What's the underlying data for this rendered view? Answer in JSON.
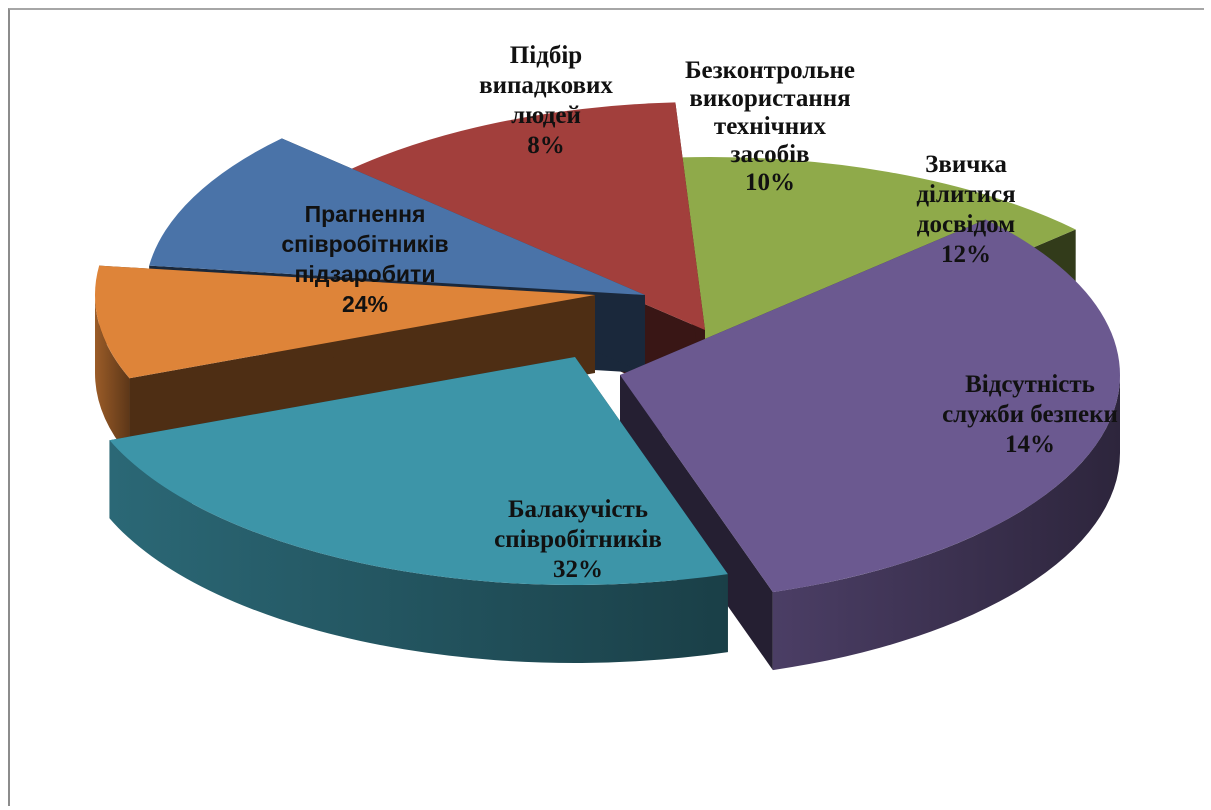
{
  "chart_data": {
    "type": "pie",
    "title": "",
    "slices": [
      {
        "label_lines": [
          "Балакучість",
          "співробітників"
        ],
        "percent_label": "32%",
        "value": 32,
        "color": "#6b5990"
      },
      {
        "label_lines": [
          "Прагнення",
          "співробітників",
          "підзаробити"
        ],
        "percent_label": "24%",
        "value": 24,
        "color": "#3d95a8"
      },
      {
        "label_lines": [
          "Підбір",
          "випадкових",
          "людей"
        ],
        "percent_label": "8%",
        "value": 8,
        "color": "#de8439"
      },
      {
        "label_lines": [
          "Безконтрольне",
          "використання",
          "технічних",
          "засобів"
        ],
        "percent_label": "10%",
        "value": 10,
        "color": "#4a73a8"
      },
      {
        "label_lines": [
          "Звичка",
          "ділитися",
          "досвідом"
        ],
        "percent_label": "12%",
        "value": 12,
        "color": "#a23f3c"
      },
      {
        "label_lines": [
          "Відсутність",
          "служби безпеки"
        ],
        "percent_label": "14%",
        "value": 14,
        "color": "#8faa4a"
      }
    ]
  }
}
